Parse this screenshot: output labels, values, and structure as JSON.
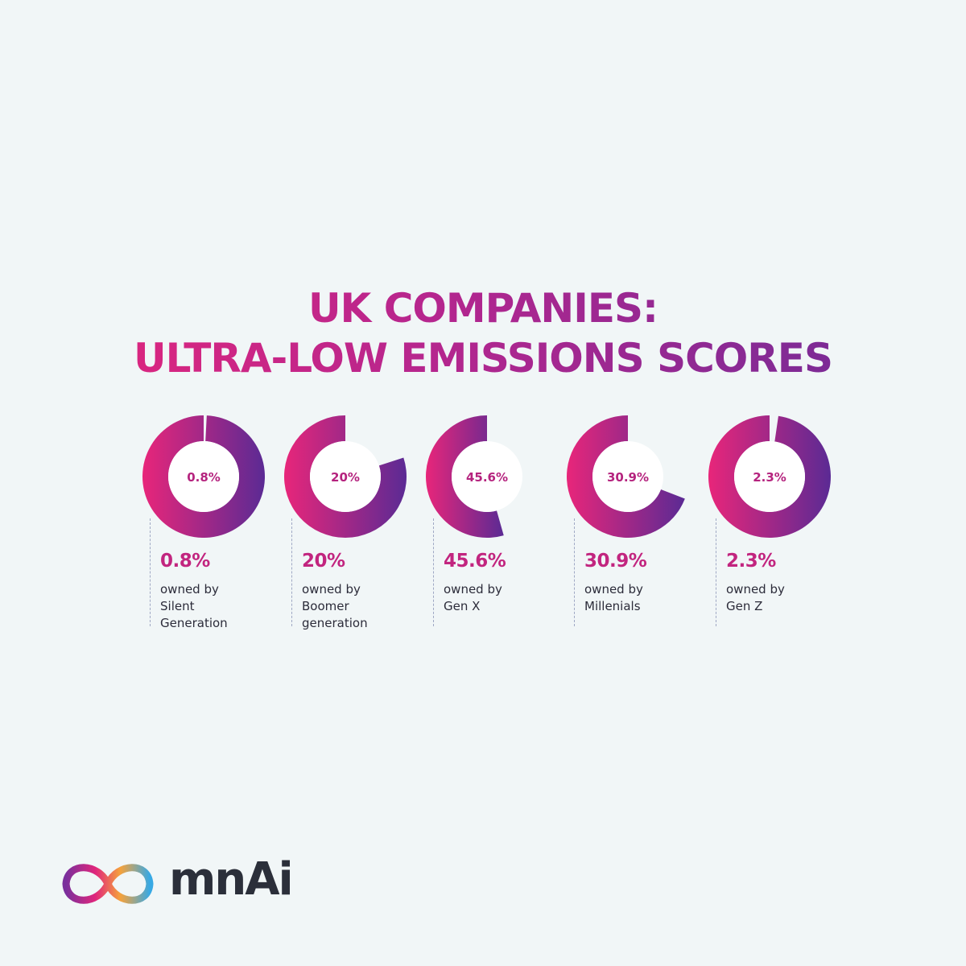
{
  "title": {
    "line1": "UK COMPANIES:",
    "line2": "ULTRA-LOW EMISSIONS SCORES"
  },
  "chart_data": {
    "type": "pie",
    "title": "UK COMPANIES: ULTRA-LOW EMISSIONS SCORES",
    "items": [
      {
        "value": 0.8,
        "center_label": "0.8%",
        "pct_label": "0.8%",
        "caption": [
          "owned by",
          "Silent",
          "Generation"
        ]
      },
      {
        "value": 20,
        "center_label": "20%",
        "pct_label": "20%",
        "caption": [
          "owned by",
          "Boomer",
          "generation"
        ]
      },
      {
        "value": 45.6,
        "center_label": "45.6%",
        "pct_label": "45.6%",
        "caption": [
          "owned by",
          "Gen X"
        ]
      },
      {
        "value": 30.9,
        "center_label": "30.9%",
        "pct_label": "30.9%",
        "caption": [
          "owned by",
          "Millenials"
        ]
      },
      {
        "value": 2.3,
        "center_label": "2.3%",
        "pct_label": "2.3%",
        "caption": [
          "owned by",
          "Gen Z"
        ]
      }
    ],
    "colors": {
      "gradient_start": "#e8267a",
      "gradient_end": "#5b2a94",
      "center_text": "#b5237e",
      "pct_text": "#c2257f"
    }
  },
  "logo": {
    "text": "mnAi",
    "icon": "infinity-logo-icon"
  }
}
